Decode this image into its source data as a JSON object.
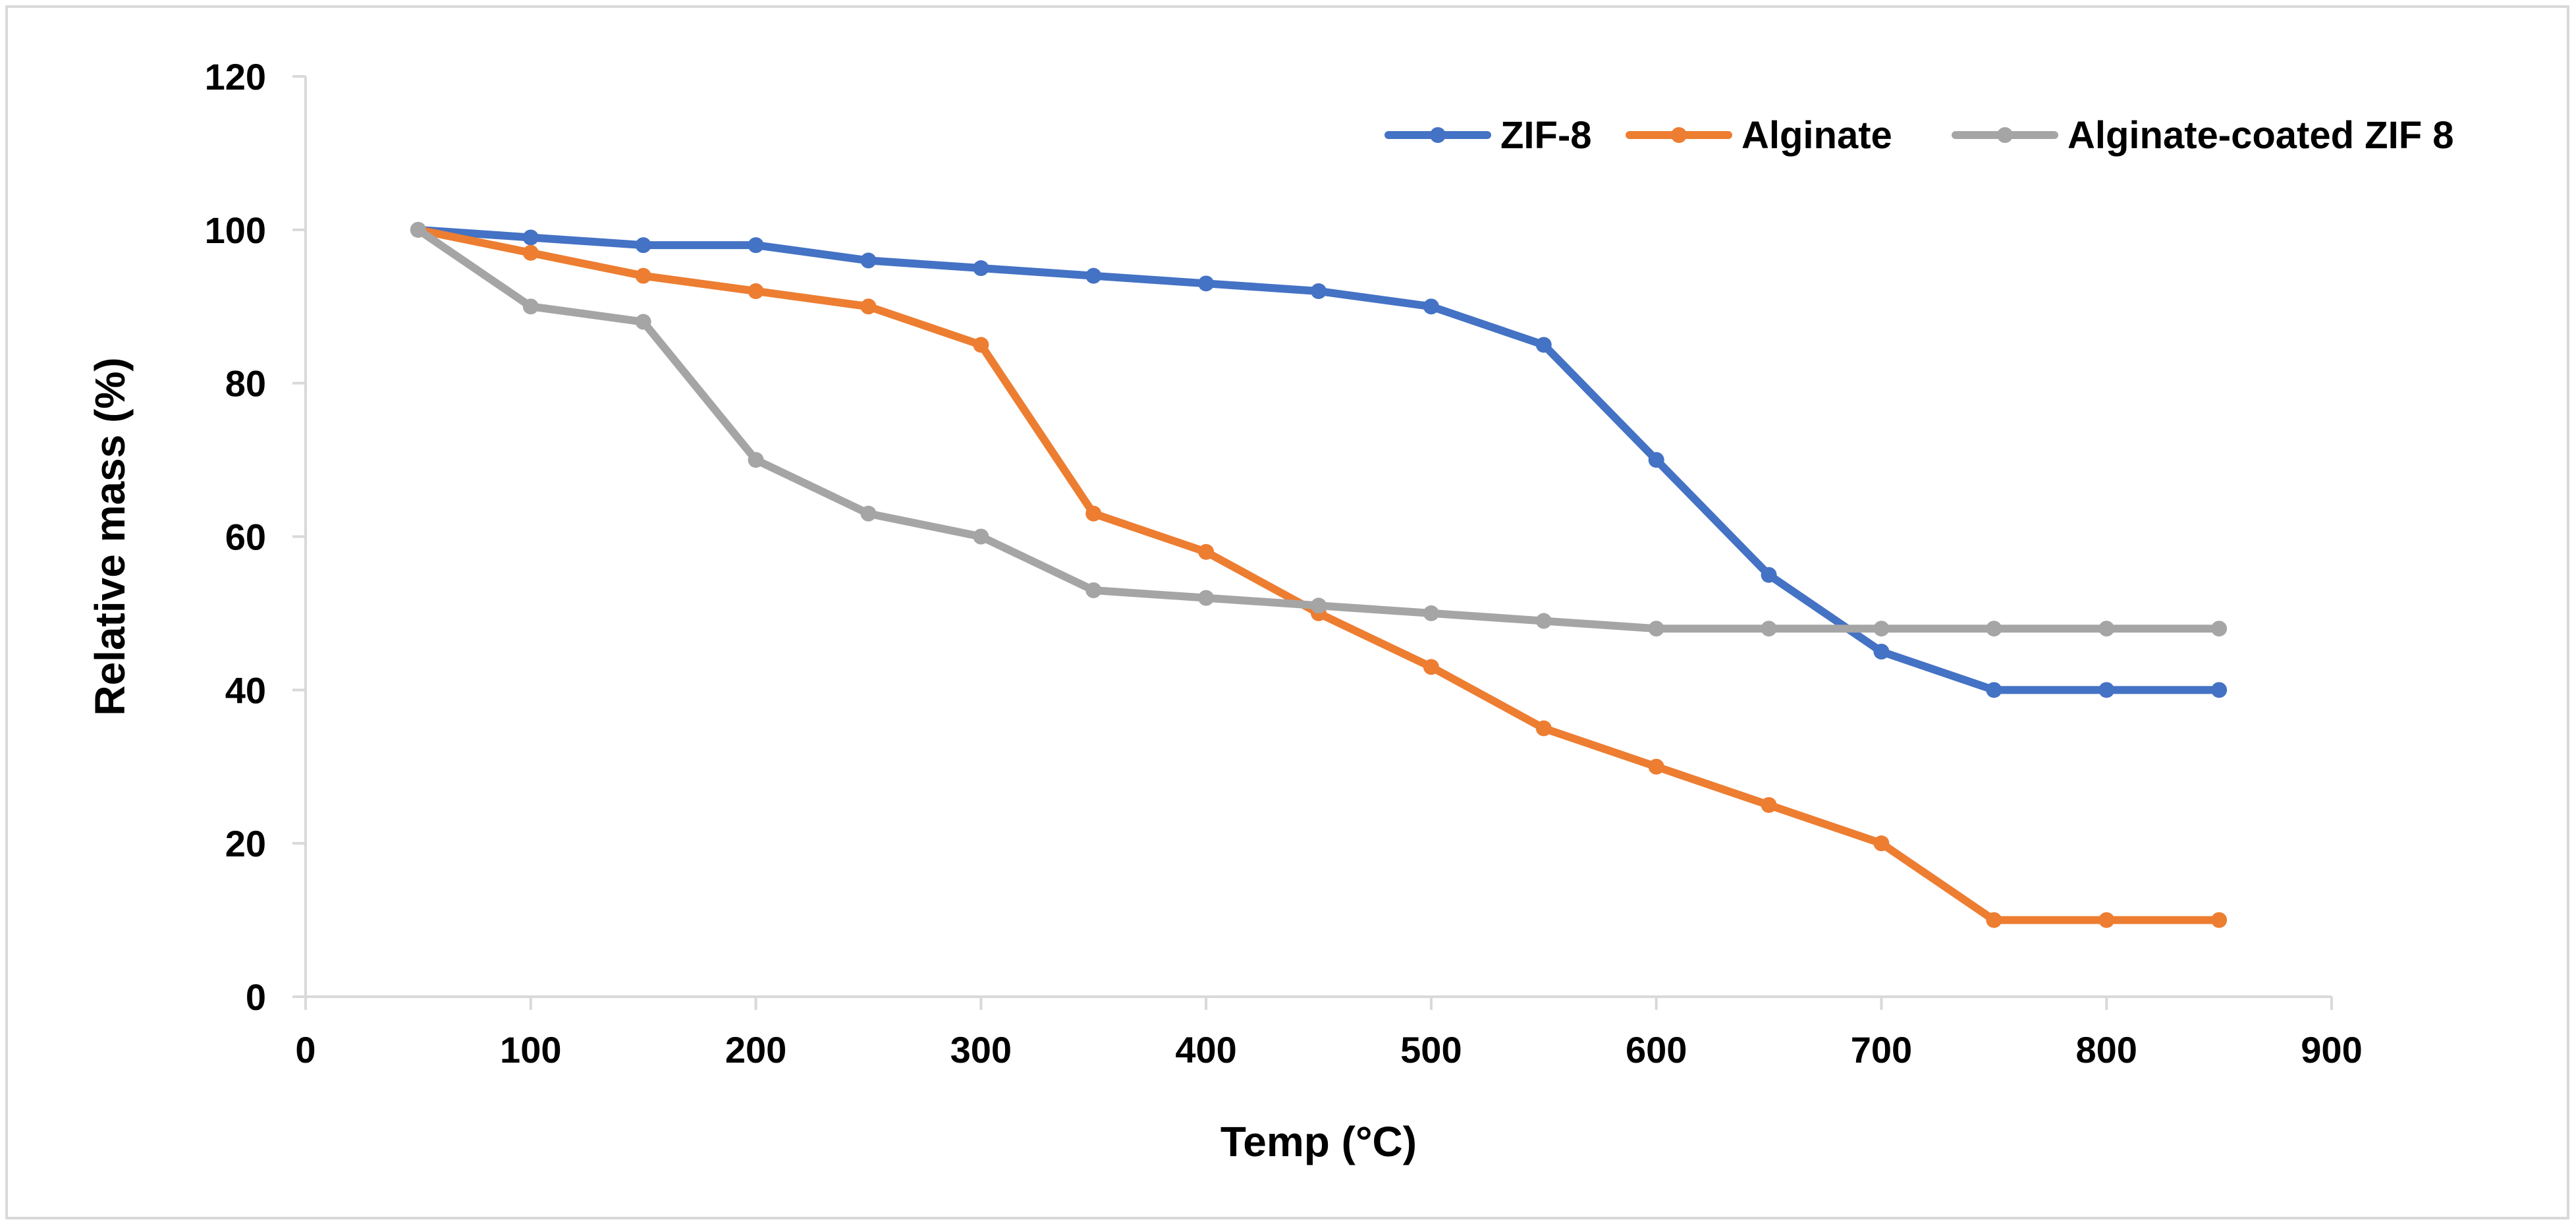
{
  "chart_data": {
    "type": "line",
    "title": "",
    "xlabel": "Temp (°C)",
    "ylabel": "Relative mass (%)",
    "xlim": [
      0,
      900
    ],
    "ylim": [
      0,
      120
    ],
    "xticks": [
      0,
      100,
      200,
      300,
      400,
      500,
      600,
      700,
      800,
      900
    ],
    "yticks": [
      0,
      20,
      40,
      60,
      80,
      100,
      120
    ],
    "grid": false,
    "legend_position": "top-right",
    "x": [
      50,
      100,
      150,
      200,
      250,
      300,
      350,
      400,
      450,
      500,
      550,
      600,
      650,
      700,
      750,
      800,
      850
    ],
    "series": [
      {
        "name": "ZIF-8",
        "color": "#4472C4",
        "values": [
          100,
          99,
          98,
          98,
          96,
          95,
          94,
          93,
          92,
          90,
          85,
          70,
          55,
          45,
          40,
          40,
          40
        ]
      },
      {
        "name": "Alginate",
        "color": "#ED7D31",
        "values": [
          100,
          97,
          94,
          92,
          90,
          85,
          63,
          58,
          50,
          43,
          35,
          30,
          25,
          20,
          10,
          10,
          10
        ]
      },
      {
        "name": "Alginate-coated ZIF 8",
        "color": "#A5A5A5",
        "values": [
          100,
          90,
          88,
          70,
          63,
          60,
          53,
          52,
          51,
          50,
          49,
          48,
          48,
          48,
          48,
          48,
          48
        ]
      }
    ]
  }
}
